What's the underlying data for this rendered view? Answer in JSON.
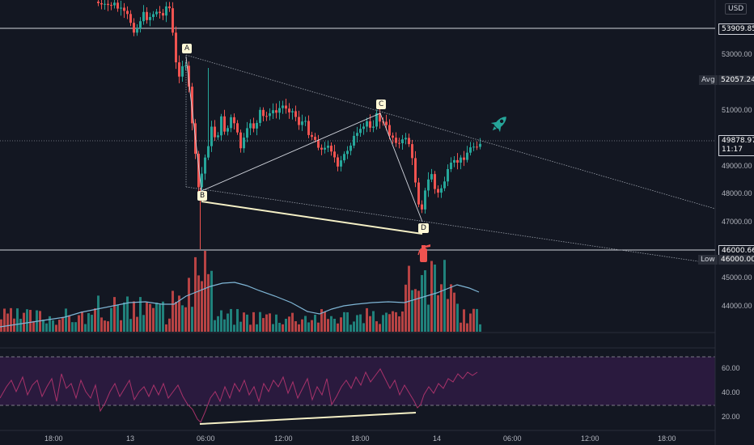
{
  "currency_button": "USD",
  "price_axis": {
    "ticks": [
      {
        "value": 53000,
        "label": "53000.00"
      },
      {
        "value": 51000,
        "label": "51000.00"
      },
      {
        "value": 49000,
        "label": "49000.00"
      },
      {
        "value": 48000,
        "label": "48000.00"
      },
      {
        "value": 47000,
        "label": "47000.00"
      },
      {
        "value": 45000,
        "label": "45000.00"
      },
      {
        "value": 44000,
        "label": "44000.00"
      }
    ],
    "price_tags": {
      "upper_line": "53909.85",
      "avg_label": "Avg",
      "avg_value": "52057.24",
      "last_price": "49878.97",
      "countdown": "11:17",
      "lower_line": "46000.66",
      "low_label": "Low",
      "low_value": "46000.00"
    }
  },
  "rsi_axis": {
    "ticks": [
      {
        "value": 60,
        "label": "60.00"
      },
      {
        "value": 40,
        "label": "40.00"
      },
      {
        "value": 20,
        "label": "20.00"
      }
    ]
  },
  "time_axis": [
    "18:00",
    "13",
    "06:00",
    "12:00",
    "18:00",
    "14",
    "06:00",
    "12:00",
    "18:00"
  ],
  "pattern_labels": [
    "A",
    "B",
    "C",
    "D"
  ],
  "colors": {
    "background": "#131722",
    "up_candle": "#26a69a",
    "down_candle": "#ef5350",
    "volume_ma": "#7fb6d6",
    "rsi_line": "#a8326a",
    "rsi_band": "#2a1a3e",
    "highlight_line": "#f5f0c6",
    "rocket": "#26a69a",
    "extinguisher": "#ef5350"
  },
  "icons": [
    "rocket-icon",
    "fire-extinguisher-icon"
  ]
}
